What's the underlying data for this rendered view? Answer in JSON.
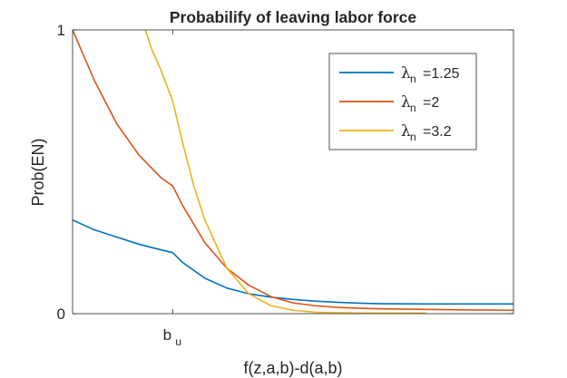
{
  "chart_data": {
    "type": "line",
    "title": "Probabilify of leaving labor force",
    "xlabel": "f(z,a,b)-d(a,b)",
    "ylabel": "Prob(EN)",
    "xlim": [
      0,
      1
    ],
    "ylim": [
      0,
      1
    ],
    "grid": false,
    "legend_position": "top-right",
    "x_ticks": [
      {
        "value": 0.227,
        "label": "b",
        "subscript": "u"
      }
    ],
    "y_ticks": [
      {
        "value": 0,
        "label": "0"
      },
      {
        "value": 1,
        "label": "1"
      }
    ],
    "series": [
      {
        "name": "=1.25",
        "legend_symbol": "λ",
        "legend_subscript": "n",
        "color": "#0072BD",
        "x": [
          0,
          0.05,
          0.1,
          0.15,
          0.2,
          0.227,
          0.25,
          0.3,
          0.35,
          0.4,
          0.45,
          0.5,
          0.55,
          0.6,
          0.65,
          0.7,
          0.8,
          0.9,
          1.0
        ],
        "y": [
          0.33,
          0.295,
          0.27,
          0.245,
          0.225,
          0.215,
          0.18,
          0.125,
          0.09,
          0.07,
          0.058,
          0.05,
          0.044,
          0.04,
          0.037,
          0.035,
          0.034,
          0.034,
          0.034
        ]
      },
      {
        "name": "=2",
        "legend_symbol": "λ",
        "legend_subscript": "n",
        "color": "#D95319",
        "x": [
          0,
          0.05,
          0.1,
          0.15,
          0.2,
          0.227,
          0.25,
          0.3,
          0.35,
          0.4,
          0.45,
          0.5,
          0.55,
          0.6,
          0.65,
          0.7,
          0.8,
          0.9,
          1.0
        ],
        "y": [
          1.0,
          0.82,
          0.67,
          0.56,
          0.48,
          0.45,
          0.38,
          0.25,
          0.16,
          0.1,
          0.06,
          0.038,
          0.028,
          0.022,
          0.019,
          0.017,
          0.015,
          0.013,
          0.012
        ]
      },
      {
        "name": "=3.2",
        "legend_symbol": "λ",
        "legend_subscript": "n",
        "color": "#EDB120",
        "x": [
          0.165,
          0.18,
          0.2,
          0.227,
          0.25,
          0.275,
          0.3,
          0.35,
          0.4,
          0.45,
          0.5,
          0.55,
          0.6,
          0.65,
          0.7,
          0.75,
          0.8
        ],
        "y": [
          1.0,
          0.93,
          0.86,
          0.75,
          0.6,
          0.45,
          0.33,
          0.16,
          0.07,
          0.028,
          0.012,
          0.005,
          0.003,
          0.002,
          0.002,
          0.002,
          0.002
        ]
      }
    ]
  }
}
